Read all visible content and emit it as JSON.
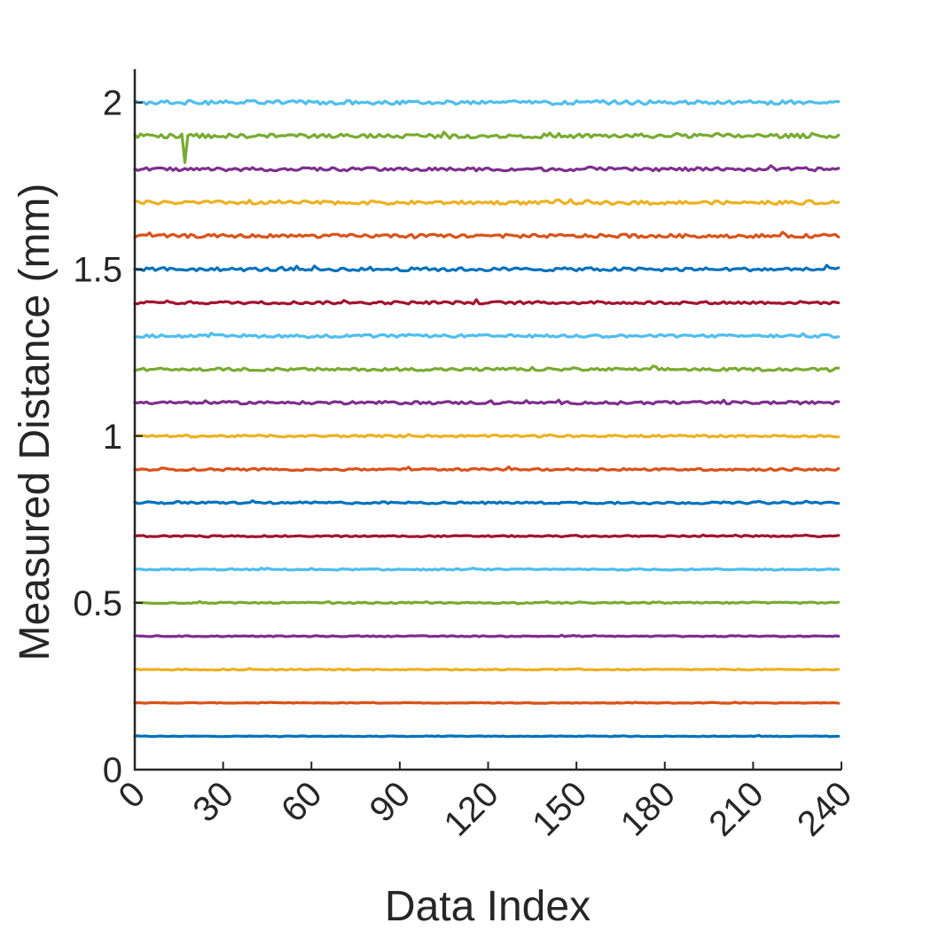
{
  "chart_data": {
    "type": "line",
    "xlabel": "Data Index",
    "ylabel": "Measured Distance (mm)",
    "xlim": [
      0,
      240
    ],
    "ylim": [
      0,
      2.1
    ],
    "xticks": [
      0,
      30,
      60,
      90,
      120,
      150,
      180,
      210,
      240
    ],
    "xtick_labels": [
      "0",
      "30",
      "60",
      "90",
      "120",
      "150",
      "180",
      "210",
      "240"
    ],
    "yticks": [
      0,
      0.5,
      1,
      1.5,
      2
    ],
    "ytick_labels": [
      "0",
      "0.5",
      "1",
      "1.5",
      "2"
    ],
    "grid": false,
    "legend": "none",
    "x_start": 0,
    "x_end": 239,
    "series": [
      {
        "level": 0.1,
        "noise": 0.001,
        "color": "#0072BD"
      },
      {
        "level": 0.2,
        "noise": 0.001,
        "color": "#D95319"
      },
      {
        "level": 0.3,
        "noise": 0.0015,
        "color": "#EDB120"
      },
      {
        "level": 0.4,
        "noise": 0.0015,
        "color": "#7E2F8E"
      },
      {
        "level": 0.5,
        "noise": 0.002,
        "color": "#77AC30"
      },
      {
        "level": 0.6,
        "noise": 0.002,
        "color": "#4DBEEE"
      },
      {
        "level": 0.7,
        "noise": 0.002,
        "color": "#A2142F"
      },
      {
        "level": 0.8,
        "noise": 0.003,
        "color": "#0072BD"
      },
      {
        "level": 0.9,
        "noise": 0.003,
        "color": "#D95319"
      },
      {
        "level": 1.0,
        "noise": 0.003,
        "color": "#EDB120"
      },
      {
        "level": 1.1,
        "noise": 0.004,
        "color": "#7E2F8E"
      },
      {
        "level": 1.2,
        "noise": 0.004,
        "color": "#77AC30"
      },
      {
        "level": 1.3,
        "noise": 0.004,
        "color": "#4DBEEE"
      },
      {
        "level": 1.4,
        "noise": 0.004,
        "color": "#A2142F"
      },
      {
        "level": 1.5,
        "noise": 0.005,
        "color": "#0072BD"
      },
      {
        "level": 1.6,
        "noise": 0.005,
        "color": "#D95319"
      },
      {
        "level": 1.7,
        "noise": 0.005,
        "color": "#EDB120"
      },
      {
        "level": 1.8,
        "noise": 0.005,
        "color": "#7E2F8E"
      },
      {
        "level": 1.9,
        "noise": 0.006,
        "color": "#77AC30",
        "dip": {
          "x": 17,
          "value": 1.82
        }
      },
      {
        "level": 2.0,
        "noise": 0.006,
        "color": "#4DBEEE"
      }
    ]
  }
}
